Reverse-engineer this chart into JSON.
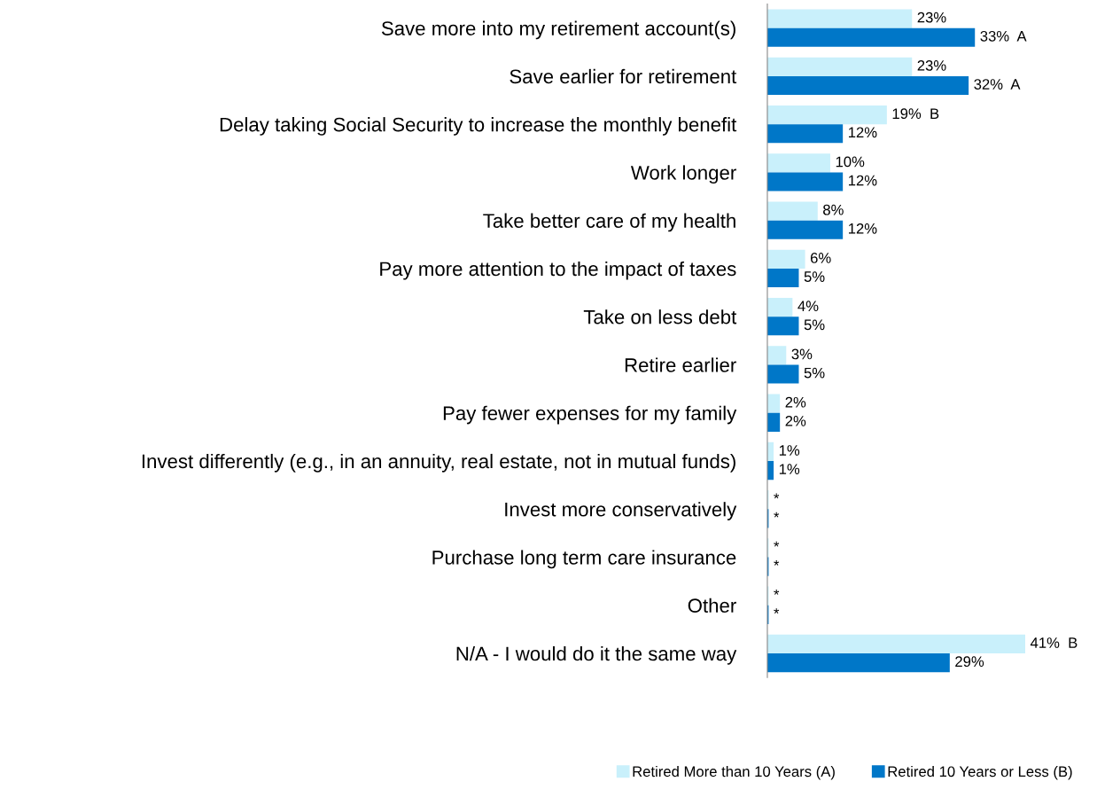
{
  "chart_data": {
    "type": "bar",
    "orientation": "horizontal",
    "categories": [
      "Save more into my retirement account(s)",
      "Save earlier for retirement",
      "Delay taking Social Security to increase the monthly benefit",
      "Work longer",
      "Take better care of my health",
      "Pay more attention to the impact of taxes",
      "Take on less debt",
      "Retire earlier",
      "Pay fewer expenses for my family",
      "Invest differently (e.g., in an annuity, real estate, not in mutual funds)",
      "Invest more conservatively",
      "Purchase long term care insurance",
      "Other",
      "N/A - I would do it the same way"
    ],
    "series": [
      {
        "name": "Retired More than 10 Years (A)",
        "color": "#c9f0fb",
        "values": [
          23,
          23,
          19,
          10,
          8,
          6,
          4,
          3,
          2,
          1,
          0.2,
          0.2,
          0.2,
          41
        ],
        "value_labels": [
          "23%",
          "23%",
          "19%  B",
          "10%",
          "8%",
          "6%",
          "4%",
          "3%",
          "2%",
          "1%",
          "*",
          "*",
          "*",
          "41%  B"
        ]
      },
      {
        "name": "Retired 10 Years or Less (B)",
        "color": "#0077c8",
        "values": [
          33,
          32,
          12,
          12,
          12,
          5,
          5,
          5,
          2,
          1,
          0.2,
          0.2,
          0.2,
          29
        ],
        "value_labels": [
          "33%  A",
          "32%  A",
          "12%",
          "12%",
          "12%",
          "5%",
          "5%",
          "5%",
          "2%",
          "1%",
          "*",
          "*",
          "*",
          "29%"
        ]
      }
    ],
    "tick_labels": "y",
    "grid": false,
    "legend": "bottom left"
  }
}
